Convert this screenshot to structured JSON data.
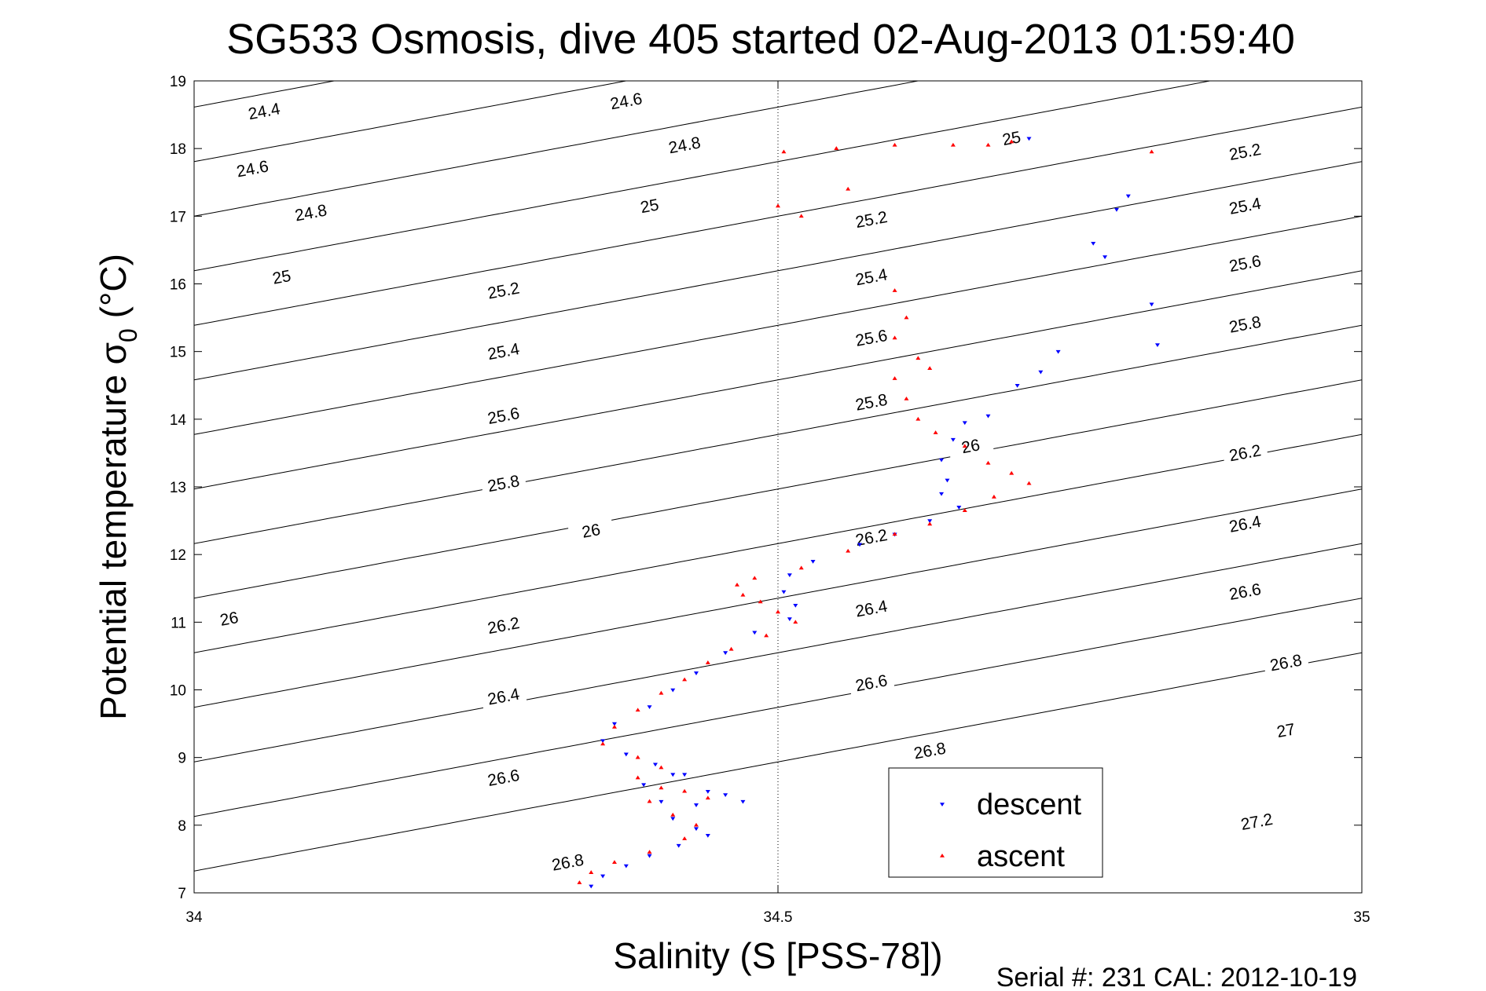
{
  "chart_data": {
    "type": "scatter",
    "title": "SG533 Osmosis, dive 405 started 02-Aug-2013 01:59:40",
    "xlabel": "Salinity (S [PSS-78])",
    "ylabel": "Potential temperature σ",
    "ylabel_sub": "0",
    "ylabel_unit": " (°C)",
    "footer": "Serial #: 231  CAL: 2012-10-19",
    "xlim": [
      34,
      35
    ],
    "ylim": [
      7,
      19
    ],
    "xticks": [
      34,
      34.5,
      35
    ],
    "xtick_labels": [
      "34",
      "34.5",
      "35"
    ],
    "yticks": [
      7,
      8,
      9,
      10,
      11,
      12,
      13,
      14,
      15,
      16,
      17,
      18,
      19
    ],
    "ytick_labels": [
      "7",
      "8",
      "9",
      "10",
      "11",
      "12",
      "13",
      "14",
      "15",
      "16",
      "17",
      "18",
      "19"
    ],
    "grid": "x=34.5 only",
    "legend_position": "bottom-right",
    "contour_levels": [
      24.4,
      24.6,
      24.8,
      25,
      25.2,
      25.4,
      25.6,
      25.8,
      26,
      26.2,
      26.4,
      26.6,
      26.8,
      27,
      27.2
    ],
    "contour_labels": [
      {
        "text": "24.4",
        "s": 34.06,
        "t": 18.55
      },
      {
        "text": "24.6",
        "s": 34.37,
        "t": 18.7
      },
      {
        "text": "24.6",
        "s": 34.05,
        "t": 17.7
      },
      {
        "text": "24.8",
        "s": 34.42,
        "t": 18.05
      },
      {
        "text": "24.8",
        "s": 34.1,
        "t": 17.05
      },
      {
        "text": "25",
        "s": 34.7,
        "t": 18.15
      },
      {
        "text": "25",
        "s": 34.39,
        "t": 17.15
      },
      {
        "text": "25",
        "s": 34.075,
        "t": 16.1
      },
      {
        "text": "25.2",
        "s": 34.9,
        "t": 17.95
      },
      {
        "text": "25.2",
        "s": 34.58,
        "t": 16.95
      },
      {
        "text": "25.2",
        "s": 34.265,
        "t": 15.9
      },
      {
        "text": "25.4",
        "s": 34.9,
        "t": 17.15
      },
      {
        "text": "25.4",
        "s": 34.58,
        "t": 16.1
      },
      {
        "text": "25.4",
        "s": 34.265,
        "t": 15.0
      },
      {
        "text": "25.6",
        "s": 34.9,
        "t": 16.3
      },
      {
        "text": "25.6",
        "s": 34.58,
        "t": 15.2
      },
      {
        "text": "25.6",
        "s": 34.265,
        "t": 14.05
      },
      {
        "text": "25.8",
        "s": 34.9,
        "t": 15.4
      },
      {
        "text": "25.8",
        "s": 34.58,
        "t": 14.25
      },
      {
        "text": "25.8",
        "s": 34.265,
        "t": 13.05
      },
      {
        "text": "26",
        "s": 34.665,
        "t": 13.6
      },
      {
        "text": "26",
        "s": 34.34,
        "t": 12.35
      },
      {
        "text": "26",
        "s": 34.03,
        "t": 11.05
      },
      {
        "text": "26.2",
        "s": 34.9,
        "t": 13.5
      },
      {
        "text": "26.2",
        "s": 34.58,
        "t": 12.25
      },
      {
        "text": "26.2",
        "s": 34.265,
        "t": 10.95
      },
      {
        "text": "26.4",
        "s": 34.9,
        "t": 12.45
      },
      {
        "text": "26.4",
        "s": 34.58,
        "t": 11.2
      },
      {
        "text": "26.4",
        "s": 34.265,
        "t": 9.9
      },
      {
        "text": "26.6",
        "s": 34.9,
        "t": 11.45
      },
      {
        "text": "26.6",
        "s": 34.58,
        "t": 10.1
      },
      {
        "text": "26.6",
        "s": 34.265,
        "t": 8.7
      },
      {
        "text": "26.8",
        "s": 34.935,
        "t": 10.4
      },
      {
        "text": "26.8",
        "s": 34.63,
        "t": 9.1
      },
      {
        "text": "26.8",
        "s": 34.32,
        "t": 7.45
      },
      {
        "text": "27",
        "s": 34.935,
        "t": 9.4
      },
      {
        "text": "27.2",
        "s": 34.91,
        "t": 8.05
      }
    ],
    "series": [
      {
        "name": "descent",
        "color": "#0000ff",
        "marker": "triangle-down",
        "points": [
          [
            34.715,
            18.15
          ],
          [
            34.79,
            17.1
          ],
          [
            34.8,
            17.3
          ],
          [
            34.77,
            16.6
          ],
          [
            34.78,
            16.4
          ],
          [
            34.82,
            15.7
          ],
          [
            34.825,
            15.1
          ],
          [
            34.74,
            15.0
          ],
          [
            34.725,
            14.7
          ],
          [
            34.705,
            14.5
          ],
          [
            34.68,
            14.05
          ],
          [
            34.66,
            13.95
          ],
          [
            34.65,
            13.7
          ],
          [
            34.64,
            13.4
          ],
          [
            34.645,
            13.1
          ],
          [
            34.64,
            12.9
          ],
          [
            34.655,
            12.7
          ],
          [
            34.63,
            12.5
          ],
          [
            34.6,
            12.3
          ],
          [
            34.57,
            12.15
          ],
          [
            34.53,
            11.9
          ],
          [
            34.51,
            11.7
          ],
          [
            34.505,
            11.45
          ],
          [
            34.515,
            11.25
          ],
          [
            34.51,
            11.05
          ],
          [
            34.48,
            10.85
          ],
          [
            34.455,
            10.55
          ],
          [
            34.43,
            10.25
          ],
          [
            34.41,
            10.0
          ],
          [
            34.39,
            9.75
          ],
          [
            34.36,
            9.5
          ],
          [
            34.35,
            9.25
          ],
          [
            34.37,
            9.05
          ],
          [
            34.395,
            8.9
          ],
          [
            34.42,
            8.75
          ],
          [
            34.44,
            8.5
          ],
          [
            34.43,
            8.3
          ],
          [
            34.41,
            8.1
          ],
          [
            34.43,
            7.95
          ],
          [
            34.44,
            7.85
          ],
          [
            34.415,
            7.7
          ],
          [
            34.39,
            7.55
          ],
          [
            34.37,
            7.4
          ],
          [
            34.35,
            7.25
          ],
          [
            34.34,
            7.1
          ],
          [
            34.47,
            8.35
          ],
          [
            34.455,
            8.45
          ],
          [
            34.4,
            8.35
          ],
          [
            34.385,
            8.6
          ],
          [
            34.41,
            8.75
          ]
        ]
      },
      {
        "name": "ascent",
        "color": "#ff0000",
        "marker": "triangle-up",
        "points": [
          [
            34.505,
            17.95
          ],
          [
            34.55,
            18.0
          ],
          [
            34.6,
            18.05
          ],
          [
            34.65,
            18.05
          ],
          [
            34.68,
            18.05
          ],
          [
            34.7,
            18.1
          ],
          [
            34.82,
            17.95
          ],
          [
            34.56,
            17.4
          ],
          [
            34.5,
            17.15
          ],
          [
            34.52,
            17.0
          ],
          [
            34.6,
            15.9
          ],
          [
            34.61,
            15.5
          ],
          [
            34.6,
            15.2
          ],
          [
            34.62,
            14.9
          ],
          [
            34.63,
            14.75
          ],
          [
            34.6,
            14.6
          ],
          [
            34.61,
            14.3
          ],
          [
            34.62,
            14.0
          ],
          [
            34.635,
            13.8
          ],
          [
            34.66,
            13.6
          ],
          [
            34.68,
            13.35
          ],
          [
            34.7,
            13.2
          ],
          [
            34.715,
            13.05
          ],
          [
            34.685,
            12.85
          ],
          [
            34.66,
            12.65
          ],
          [
            34.63,
            12.45
          ],
          [
            34.6,
            12.3
          ],
          [
            34.56,
            12.05
          ],
          [
            34.52,
            11.8
          ],
          [
            34.48,
            11.65
          ],
          [
            34.465,
            11.55
          ],
          [
            34.47,
            11.4
          ],
          [
            34.485,
            11.3
          ],
          [
            34.5,
            11.15
          ],
          [
            34.515,
            11.0
          ],
          [
            34.49,
            10.8
          ],
          [
            34.46,
            10.6
          ],
          [
            34.44,
            10.4
          ],
          [
            34.42,
            10.15
          ],
          [
            34.4,
            9.95
          ],
          [
            34.38,
            9.7
          ],
          [
            34.36,
            9.45
          ],
          [
            34.35,
            9.2
          ],
          [
            34.38,
            9.0
          ],
          [
            34.4,
            8.85
          ],
          [
            34.38,
            8.7
          ],
          [
            34.4,
            8.55
          ],
          [
            34.42,
            8.5
          ],
          [
            34.44,
            8.4
          ],
          [
            34.39,
            8.35
          ],
          [
            34.41,
            8.15
          ],
          [
            34.43,
            8.0
          ],
          [
            34.42,
            7.8
          ],
          [
            34.39,
            7.6
          ],
          [
            34.36,
            7.45
          ],
          [
            34.34,
            7.3
          ],
          [
            34.33,
            7.15
          ]
        ]
      }
    ]
  }
}
